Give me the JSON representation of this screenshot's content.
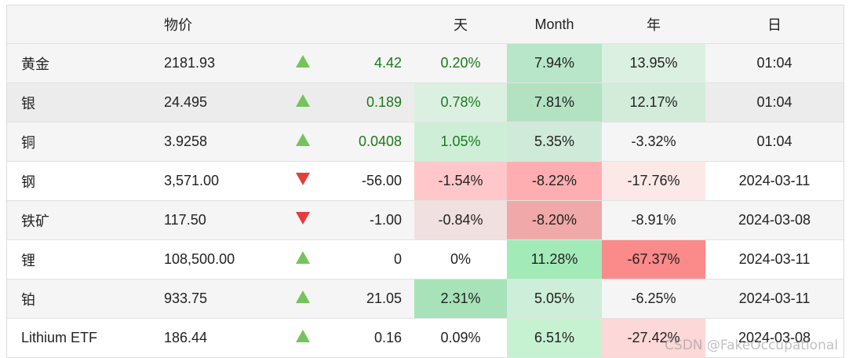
{
  "headers": {
    "name": "",
    "price": "物价",
    "arrow": "",
    "change": "",
    "day": "天",
    "month": "Month",
    "year": "年",
    "date": "日"
  },
  "rows": [
    {
      "name": "黄金",
      "price": "2181.93",
      "dir": "up",
      "change": "4.42",
      "day": "0.20%",
      "month": "7.94%",
      "year": "13.95%",
      "date": "01:04",
      "colors": {
        "day": "#f5f5f5",
        "month": "#b8e6c8",
        "year": "#dcf0e2",
        "date": "#f5f5f5"
      },
      "green": true
    },
    {
      "name": "银",
      "price": "24.495",
      "dir": "up",
      "change": "0.189",
      "day": "0.78%",
      "month": "7.81%",
      "year": "12.17%",
      "date": "01:04",
      "colors": {
        "day": "#dcf0e2",
        "month": "#b2e2c2",
        "year": "#d2ecd9",
        "date": "#ececec"
      },
      "green": true
    },
    {
      "name": "铜",
      "price": "3.9258",
      "dir": "up",
      "change": "0.0408",
      "day": "1.05%",
      "month": "5.35%",
      "year": "-3.32%",
      "date": "01:04",
      "colors": {
        "day": "#cfeed8",
        "month": "#d0ead9",
        "year": "#f5f5f5",
        "date": "#f5f5f5"
      },
      "green": true
    },
    {
      "name": "钢",
      "price": "3,571.00",
      "dir": "down",
      "change": "-56.00",
      "day": "-1.54%",
      "month": "-8.22%",
      "year": "-17.76%",
      "date": "2024-03-11",
      "colors": {
        "day": "#ffc7c9",
        "month": "#feaeb0",
        "year": "#fde8e8",
        "date": "#ffffff"
      },
      "green": false
    },
    {
      "name": "铁矿",
      "price": "117.50",
      "dir": "down",
      "change": "-1.00",
      "day": "-0.84%",
      "month": "-8.20%",
      "year": "-8.91%",
      "date": "2024-03-08",
      "colors": {
        "day": "#f0e0e0",
        "month": "#f0a8a8",
        "year": "#f5f5f5",
        "date": "#f5f5f5"
      },
      "green": false
    },
    {
      "name": "锂",
      "price": "108,500.00",
      "dir": "up",
      "change": "0",
      "day": "0%",
      "month": "11.28%",
      "year": "-67.37%",
      "date": "2024-03-11",
      "colors": {
        "day": "#ffffff",
        "month": "#a3eab9",
        "year": "#fb8a8a",
        "date": "#ffffff"
      },
      "green": false
    },
    {
      "name": "铂",
      "price": "933.75",
      "dir": "up",
      "change": "21.05",
      "day": "2.31%",
      "month": "5.05%",
      "year": "-6.25%",
      "date": "2024-03-11",
      "colors": {
        "day": "#a8e2b8",
        "month": "#cdeed8",
        "year": "#f5f5f5",
        "date": "#f5f5f5"
      },
      "green": false
    },
    {
      "name": "Lithium ETF",
      "price": "186.44",
      "dir": "up",
      "change": "0.16",
      "day": "0.09%",
      "month": "6.51%",
      "year": "-27.42%",
      "date": "2024-03-08",
      "colors": {
        "day": "#ffffff",
        "month": "#c6f2d2",
        "year": "#fdd8d8",
        "date": "#ffffff"
      },
      "green": false
    }
  ],
  "row_bands": [
    "shaded",
    "shaded2",
    "shaded",
    "",
    "shaded",
    "",
    "shaded",
    ""
  ],
  "icons": {
    "up": "triangle-up-icon",
    "down": "triangle-down-icon"
  },
  "watermark": "CSDN @FakeOccupational"
}
